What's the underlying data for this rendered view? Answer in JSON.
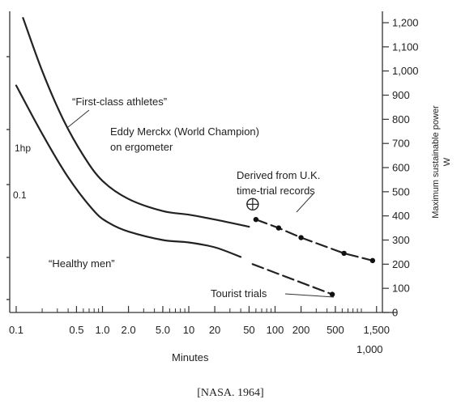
{
  "chart_data": {
    "type": "line",
    "x_scale": "log",
    "x_unit": "min",
    "xlabel": "Minutes",
    "ylabel": "Maximum sustainable power",
    "ylabel_unit": "W",
    "ylim": [
      0,
      1250
    ],
    "x_ticks": [
      "0.1",
      "0.5",
      "1.0",
      "2.0",
      "5.0",
      "10",
      "20",
      "50",
      "100",
      "200",
      "500",
      "1,500"
    ],
    "x_tick_sub": "1,000",
    "y_ticks": [
      "0",
      "100",
      "200",
      "300",
      "400",
      "500",
      "600",
      "700",
      "800",
      "900",
      "1,000",
      "1,100",
      "1,200"
    ],
    "left_axis": {
      "tick_labels": [
        "1hp",
        "0.1"
      ]
    },
    "series": [
      {
        "name": "First-class athletes",
        "x": [
          0.12,
          0.2,
          0.35,
          0.6,
          1.0,
          2.0,
          5.0,
          10,
          20,
          50
        ],
        "y": [
          1220,
          1000,
          800,
          650,
          545,
          470,
          420,
          405,
          385,
          355
        ]
      },
      {
        "name": "Healthy men",
        "x": [
          0.1,
          0.2,
          0.4,
          0.8,
          1.2,
          2.0,
          5.0,
          10,
          20,
          40
        ],
        "y": [
          940,
          740,
          560,
          420,
          370,
          335,
          300,
          290,
          270,
          230
        ]
      },
      {
        "name": "Tourist trials",
        "x": [
          55,
          460
        ],
        "y": [
          200,
          75
        ]
      },
      {
        "name": "Derived from U.K. time-trial records",
        "x": [
          60,
          110,
          200,
          630,
          1350
        ],
        "y": [
          385,
          350,
          310,
          245,
          215
        ]
      }
    ],
    "point_marker": {
      "name": "Eddy Merckx (World Champion) on ergometer",
      "x": 55,
      "y": 448
    }
  },
  "annotations": {
    "first_class": "“First-class athletes”",
    "merckx_line1": "Eddy Merckx (World Champion)",
    "merckx_line2": "on ergometer",
    "derived_line1": "Derived from U.K.",
    "derived_line2": "time-trial records",
    "healthy": "“Healthy men”",
    "tourist": "Tourist trials"
  },
  "source": "[NASA. 1964]"
}
